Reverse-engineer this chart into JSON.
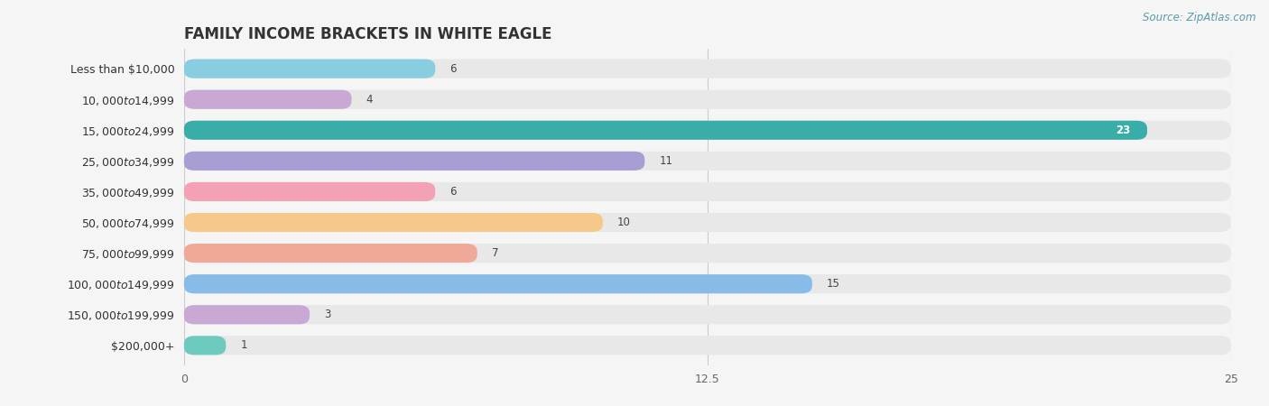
{
  "title": "FAMILY INCOME BRACKETS IN WHITE EAGLE",
  "source": "Source: ZipAtlas.com",
  "categories": [
    "Less than $10,000",
    "$10,000 to $14,999",
    "$15,000 to $24,999",
    "$25,000 to $34,999",
    "$35,000 to $49,999",
    "$50,000 to $74,999",
    "$75,000 to $99,999",
    "$100,000 to $149,999",
    "$150,000 to $199,999",
    "$200,000+"
  ],
  "values": [
    6,
    4,
    23,
    11,
    6,
    10,
    7,
    15,
    3,
    1
  ],
  "bar_colors": [
    "#89CDE0",
    "#C9A8D4",
    "#3AADA8",
    "#A89ED4",
    "#F4A0B5",
    "#F5C98A",
    "#F0A899",
    "#88BBE8",
    "#C9A8D4",
    "#6DCBBE"
  ],
  "xlim": [
    0,
    25
  ],
  "xticks": [
    0,
    12.5,
    25
  ],
  "background_color": "#f5f5f5",
  "bar_background_color": "#e8e8e8",
  "title_fontsize": 12,
  "label_fontsize": 9,
  "value_fontsize": 8.5,
  "source_fontsize": 8.5
}
